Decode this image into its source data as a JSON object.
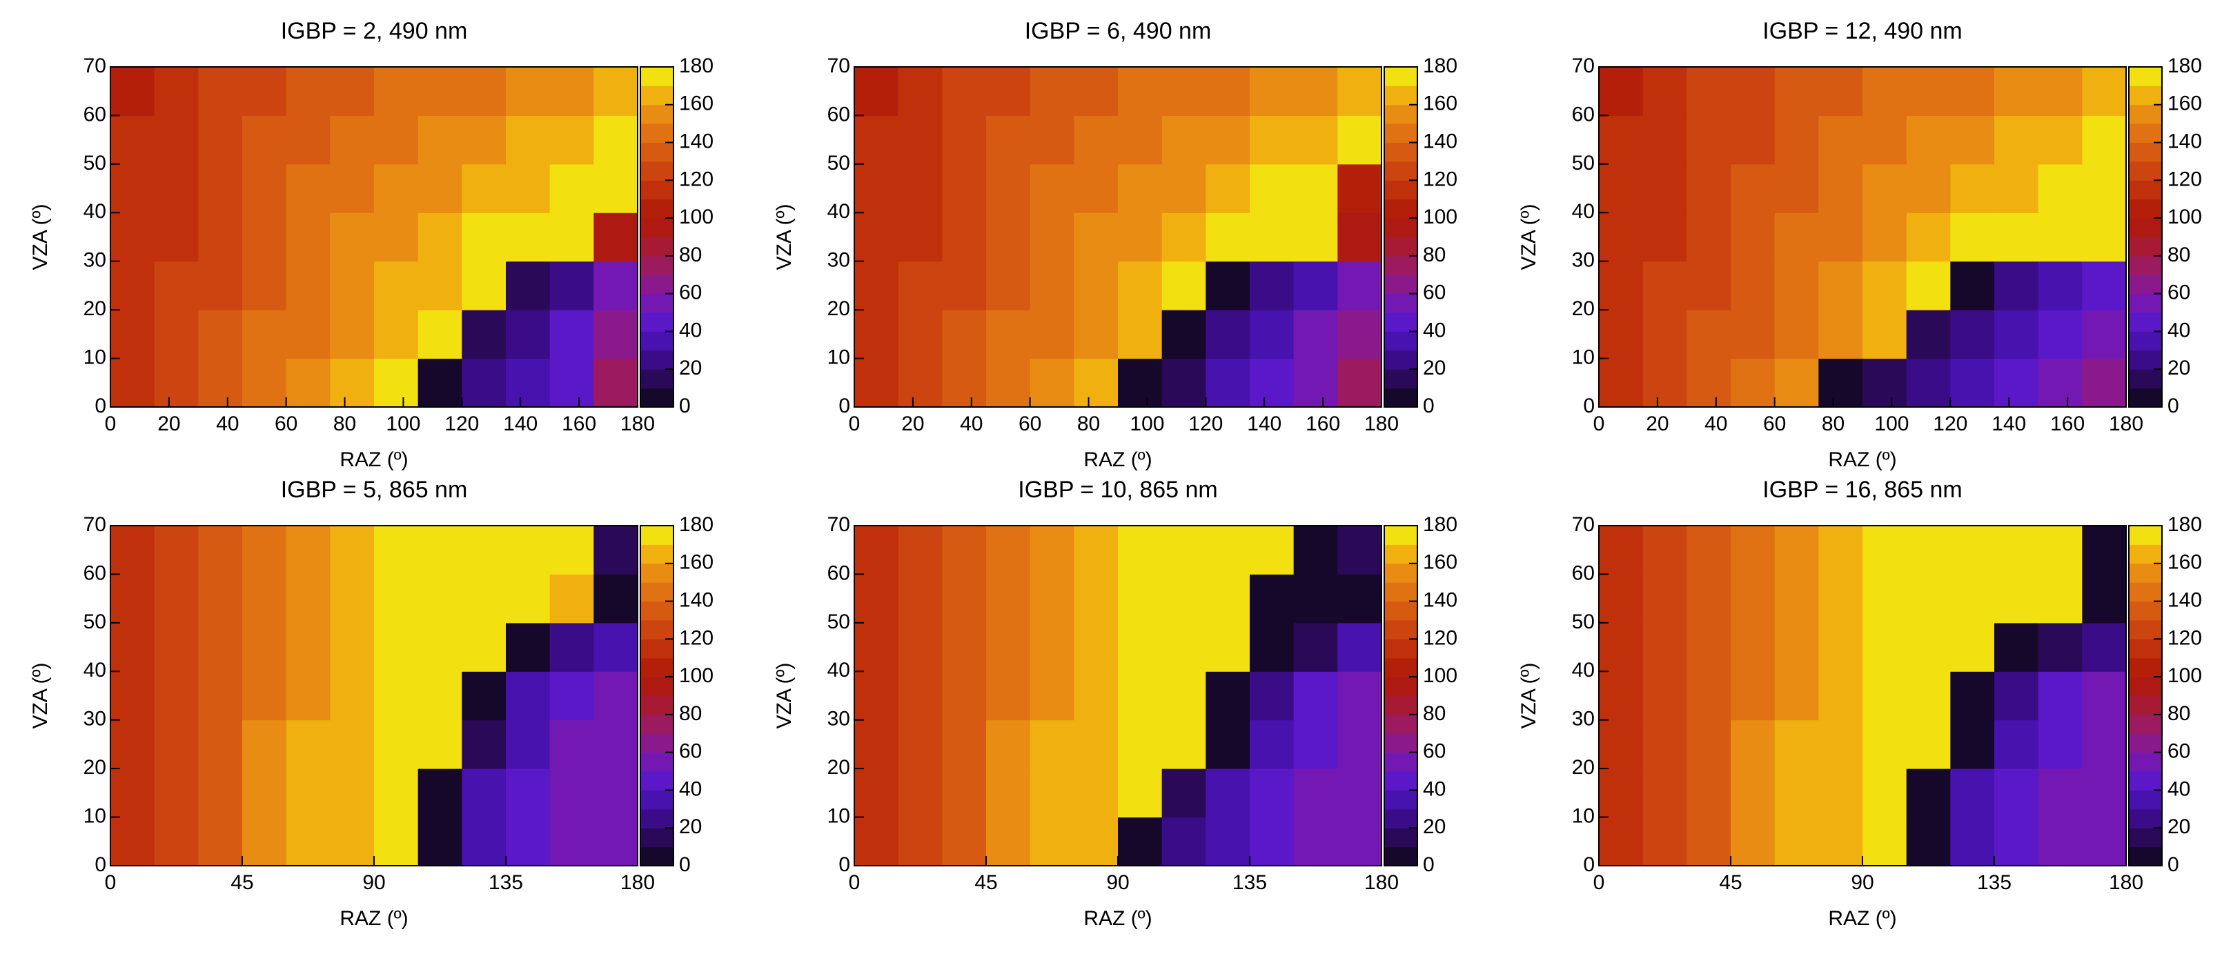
{
  "chart_data": [
    {
      "type": "heatmap",
      "title": "IGBP = 2, 490 nm",
      "xlabel": "RAZ (º)",
      "ylabel": "VZA (º)",
      "x_edges": [
        0,
        15,
        30,
        45,
        60,
        75,
        90,
        105,
        120,
        135,
        150,
        165,
        180
      ],
      "y_edges": [
        0,
        10,
        20,
        30,
        40,
        50,
        60,
        70
      ],
      "z": [
        [
          112,
          122,
          132,
          142,
          152,
          162,
          170,
          8,
          22,
          36,
          48,
          78
        ],
        [
          112,
          121,
          130,
          140,
          148,
          156,
          165,
          176,
          12,
          28,
          44,
          66
        ],
        [
          111,
          120,
          129,
          138,
          146,
          153,
          160,
          168,
          176,
          12,
          28,
          50
        ],
        [
          111,
          119,
          127,
          135,
          143,
          150,
          156,
          163,
          170,
          176,
          175,
          96
        ],
        [
          110,
          118,
          125,
          133,
          140,
          146,
          151,
          157,
          163,
          169,
          175,
          178
        ],
        [
          110,
          116,
          123,
          130,
          136,
          141,
          146,
          151,
          156,
          160,
          165,
          170
        ],
        [
          108,
          115,
          121,
          126,
          131,
          136,
          140,
          144,
          148,
          152,
          156,
          160
        ]
      ],
      "xlim": [
        0,
        180
      ],
      "ylim": [
        0,
        70
      ],
      "xticks": [
        0,
        20,
        40,
        60,
        80,
        100,
        120,
        140,
        160,
        180
      ],
      "yticks": [
        0,
        10,
        20,
        30,
        40,
        50,
        60,
        70
      ],
      "clim": [
        0,
        180
      ],
      "cticks": [
        0,
        20,
        40,
        60,
        80,
        100,
        120,
        140,
        160,
        180
      ],
      "colors": [
        "#16082a",
        "#2a0a58",
        "#3a0c88",
        "#4812ae",
        "#5a18c8",
        "#7418b4",
        "#8a1a8c",
        "#9c1a5e",
        "#a61a34",
        "#ae1a12",
        "#b41f0a",
        "#c0300a",
        "#cc4410",
        "#d65a12",
        "#e07214",
        "#e88c14",
        "#efb010",
        "#f2e010"
      ]
    },
    {
      "type": "heatmap",
      "title": "IGBP = 6, 490 nm",
      "xlabel": "RAZ (º)",
      "ylabel": "VZA (º)",
      "x_edges": [
        0,
        15,
        30,
        45,
        60,
        75,
        90,
        105,
        120,
        135,
        150,
        165,
        180
      ],
      "y_edges": [
        0,
        10,
        20,
        30,
        40,
        50,
        60,
        70
      ],
      "z": [
        [
          113,
          123,
          133,
          143,
          153,
          163,
          6,
          18,
          30,
          42,
          52,
          70
        ],
        [
          112,
          122,
          131,
          140,
          149,
          157,
          167,
          8,
          24,
          38,
          50,
          64
        ],
        [
          111,
          120,
          129,
          138,
          146,
          154,
          162,
          171,
          6,
          22,
          38,
          56
        ],
        [
          111,
          119,
          127,
          135,
          143,
          150,
          157,
          164,
          171,
          178,
          172,
          90
        ],
        [
          110,
          118,
          126,
          133,
          140,
          146,
          152,
          158,
          164,
          170,
          176,
          100
        ],
        [
          110,
          117,
          124,
          130,
          136,
          141,
          146,
          151,
          156,
          161,
          166,
          172
        ],
        [
          108,
          115,
          121,
          127,
          132,
          137,
          141,
          145,
          149,
          153,
          157,
          162
        ]
      ],
      "xlim": [
        0,
        180
      ],
      "ylim": [
        0,
        70
      ],
      "xticks": [
        0,
        20,
        40,
        60,
        80,
        100,
        120,
        140,
        160,
        180
      ],
      "yticks": [
        0,
        10,
        20,
        30,
        40,
        50,
        60,
        70
      ],
      "clim": [
        0,
        180
      ],
      "cticks": [
        0,
        20,
        40,
        60,
        80,
        100,
        120,
        140,
        160,
        180
      ],
      "colors": [
        "#16082a",
        "#2a0a58",
        "#3a0c88",
        "#4812ae",
        "#5a18c8",
        "#7418b4",
        "#8a1a8c",
        "#9c1a5e",
        "#a61a34",
        "#ae1a12",
        "#b41f0a",
        "#c0300a",
        "#cc4410",
        "#d65a12",
        "#e07214",
        "#e88c14",
        "#efb010",
        "#f2e010"
      ]
    },
    {
      "type": "heatmap",
      "title": "IGBP = 12, 490 nm",
      "xlabel": "RAZ (º)",
      "ylabel": "VZA (º)",
      "x_edges": [
        0,
        15,
        30,
        45,
        60,
        75,
        90,
        105,
        120,
        135,
        150,
        165,
        180
      ],
      "y_edges": [
        0,
        10,
        20,
        30,
        40,
        50,
        60,
        70
      ],
      "z": [
        [
          112,
          122,
          132,
          142,
          152,
          4,
          16,
          28,
          38,
          48,
          56,
          66
        ],
        [
          112,
          121,
          130,
          139,
          148,
          157,
          168,
          12,
          26,
          38,
          48,
          58
        ],
        [
          111,
          120,
          128,
          137,
          145,
          153,
          161,
          170,
          6,
          20,
          34,
          48
        ],
        [
          111,
          119,
          127,
          134,
          142,
          149,
          156,
          163,
          171,
          178,
          170,
          176
        ],
        [
          110,
          118,
          125,
          132,
          139,
          145,
          151,
          157,
          163,
          169,
          175,
          178
        ],
        [
          110,
          116,
          123,
          129,
          135,
          140,
          145,
          150,
          155,
          160,
          165,
          170
        ],
        [
          108,
          115,
          121,
          126,
          131,
          136,
          140,
          144,
          148,
          152,
          156,
          160
        ]
      ],
      "xlim": [
        0,
        180
      ],
      "ylim": [
        0,
        70
      ],
      "xticks": [
        0,
        20,
        40,
        60,
        80,
        100,
        120,
        140,
        160,
        180
      ],
      "yticks": [
        0,
        10,
        20,
        30,
        40,
        50,
        60,
        70
      ],
      "clim": [
        0,
        180
      ],
      "cticks": [
        0,
        20,
        40,
        60,
        80,
        100,
        120,
        140,
        160,
        180
      ],
      "colors": [
        "#16082a",
        "#2a0a58",
        "#3a0c88",
        "#4812ae",
        "#5a18c8",
        "#7418b4",
        "#8a1a8c",
        "#9c1a5e",
        "#a61a34",
        "#ae1a12",
        "#b41f0a",
        "#c0300a",
        "#cc4410",
        "#d65a12",
        "#e07214",
        "#e88c14",
        "#efb010",
        "#f2e010"
      ]
    },
    {
      "type": "heatmap",
      "title": "IGBP = 5, 865 nm",
      "xlabel": "RAZ (º)",
      "ylabel": "VZA (º)",
      "x_edges": [
        0,
        15,
        30,
        45,
        60,
        75,
        90,
        105,
        120,
        135,
        150,
        165,
        180
      ],
      "y_edges": [
        0,
        10,
        20,
        30,
        40,
        50,
        60,
        70
      ],
      "z": [
        [
          114,
          126,
          138,
          150,
          160,
          168,
          174,
          6,
          32,
          44,
          50,
          56
        ],
        [
          114,
          126,
          138,
          150,
          160,
          168,
          176,
          8,
          34,
          46,
          52,
          58
        ],
        [
          114,
          126,
          138,
          150,
          160,
          168,
          175,
          178,
          10,
          38,
          50,
          56
        ],
        [
          114,
          126,
          138,
          149,
          159,
          167,
          173,
          178,
          8,
          30,
          44,
          52
        ],
        [
          114,
          125,
          137,
          148,
          158,
          166,
          172,
          176,
          178,
          6,
          20,
          34
        ],
        [
          113,
          125,
          136,
          147,
          157,
          165,
          171,
          175,
          178,
          172,
          168,
          6
        ],
        [
          113,
          124,
          135,
          146,
          156,
          164,
          170,
          174,
          176,
          178,
          170,
          10
        ]
      ],
      "xlim": [
        0,
        180
      ],
      "ylim": [
        0,
        70
      ],
      "xticks": [
        0,
        45,
        90,
        135,
        180
      ],
      "yticks": [
        0,
        10,
        20,
        30,
        40,
        50,
        60,
        70
      ],
      "clim": [
        0,
        180
      ],
      "cticks": [
        0,
        20,
        40,
        60,
        80,
        100,
        120,
        140,
        160,
        180
      ],
      "colors": [
        "#16082a",
        "#2a0a58",
        "#3a0c88",
        "#4812ae",
        "#5a18c8",
        "#7418b4",
        "#8a1a8c",
        "#9c1a5e",
        "#a61a34",
        "#ae1a12",
        "#b41f0a",
        "#c0300a",
        "#cc4410",
        "#d65a12",
        "#e07214",
        "#e88c14",
        "#efb010",
        "#f2e010"
      ]
    },
    {
      "type": "heatmap",
      "title": "IGBP = 10, 865 nm",
      "xlabel": "RAZ (º)",
      "ylabel": "VZA (º)",
      "x_edges": [
        0,
        15,
        30,
        45,
        60,
        75,
        90,
        105,
        120,
        135,
        150,
        165,
        180
      ],
      "y_edges": [
        0,
        10,
        20,
        30,
        40,
        50,
        60,
        70
      ],
      "z": [
        [
          114,
          126,
          138,
          150,
          160,
          168,
          6,
          20,
          36,
          46,
          52,
          58
        ],
        [
          114,
          126,
          138,
          150,
          160,
          168,
          176,
          10,
          36,
          48,
          54,
          58
        ],
        [
          114,
          126,
          138,
          150,
          160,
          168,
          175,
          178,
          8,
          36,
          48,
          56
        ],
        [
          114,
          125,
          137,
          149,
          159,
          167,
          173,
          178,
          6,
          28,
          42,
          50
        ],
        [
          113,
          125,
          136,
          148,
          158,
          166,
          172,
          176,
          178,
          4,
          18,
          30
        ],
        [
          113,
          124,
          135,
          147,
          157,
          165,
          171,
          175,
          178,
          4,
          4,
          6
        ],
        [
          112,
          124,
          135,
          146,
          156,
          164,
          170,
          174,
          176,
          178,
          8,
          10
        ]
      ],
      "xlim": [
        0,
        180
      ],
      "ylim": [
        0,
        70
      ],
      "xticks": [
        0,
        45,
        90,
        135,
        180
      ],
      "yticks": [
        0,
        10,
        20,
        30,
        40,
        50,
        60,
        70
      ],
      "clim": [
        0,
        180
      ],
      "cticks": [
        0,
        20,
        40,
        60,
        80,
        100,
        120,
        140,
        160,
        180
      ],
      "colors": [
        "#16082a",
        "#2a0a58",
        "#3a0c88",
        "#4812ae",
        "#5a18c8",
        "#7418b4",
        "#8a1a8c",
        "#9c1a5e",
        "#a61a34",
        "#ae1a12",
        "#b41f0a",
        "#c0300a",
        "#cc4410",
        "#d65a12",
        "#e07214",
        "#e88c14",
        "#efb010",
        "#f2e010"
      ]
    },
    {
      "type": "heatmap",
      "title": "IGBP = 16, 865 nm",
      "xlabel": "RAZ (º)",
      "ylabel": "VZA (º)",
      "x_edges": [
        0,
        15,
        30,
        45,
        60,
        75,
        90,
        105,
        120,
        135,
        150,
        165,
        180
      ],
      "y_edges": [
        0,
        10,
        20,
        30,
        40,
        50,
        60,
        70
      ],
      "z": [
        [
          114,
          126,
          138,
          150,
          160,
          168,
          175,
          4,
          30,
          44,
          50,
          56
        ],
        [
          114,
          126,
          138,
          150,
          160,
          168,
          176,
          8,
          34,
          46,
          52,
          58
        ],
        [
          114,
          126,
          138,
          150,
          160,
          168,
          175,
          178,
          8,
          36,
          48,
          56
        ],
        [
          114,
          125,
          137,
          149,
          159,
          167,
          173,
          178,
          6,
          26,
          40,
          50
        ],
        [
          113,
          125,
          136,
          148,
          158,
          166,
          172,
          176,
          178,
          4,
          16,
          28
        ],
        [
          113,
          124,
          135,
          147,
          157,
          165,
          171,
          175,
          178,
          172,
          174,
          6
        ],
        [
          112,
          124,
          135,
          146,
          156,
          164,
          170,
          174,
          176,
          178,
          172,
          8
        ]
      ],
      "xlim": [
        0,
        180
      ],
      "ylim": [
        0,
        70
      ],
      "xticks": [
        0,
        45,
        90,
        135,
        180
      ],
      "yticks": [
        0,
        10,
        20,
        30,
        40,
        50,
        60,
        70
      ],
      "clim": [
        0,
        180
      ],
      "cticks": [
        0,
        20,
        40,
        60,
        80,
        100,
        120,
        140,
        160,
        180
      ],
      "colors": [
        "#16082a",
        "#2a0a58",
        "#3a0c88",
        "#4812ae",
        "#5a18c8",
        "#7418b4",
        "#8a1a8c",
        "#9c1a5e",
        "#a61a34",
        "#ae1a12",
        "#b41f0a",
        "#c0300a",
        "#cc4410",
        "#d65a12",
        "#e07214",
        "#e88c14",
        "#efb010",
        "#f2e010"
      ]
    }
  ]
}
